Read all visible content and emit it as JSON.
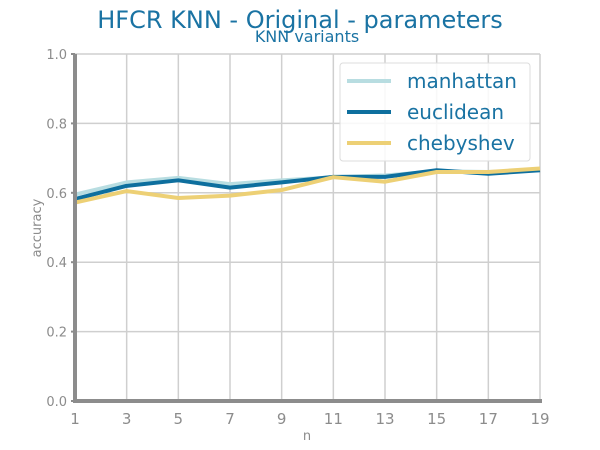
{
  "chart_data": {
    "type": "line",
    "title": "HFCR KNN - Original - parameters",
    "subtitle": "KNN variants",
    "xlabel": "n",
    "ylabel": "accuracy",
    "x": [
      1,
      3,
      5,
      7,
      9,
      11,
      13,
      15,
      17,
      19
    ],
    "xlim": [
      1,
      19
    ],
    "ylim": [
      0.0,
      1.0
    ],
    "xticks": [
      "1",
      "3",
      "5",
      "7",
      "9",
      "11",
      "13",
      "15",
      "17",
      "19"
    ],
    "yticks": [
      "0.0",
      "0.2",
      "0.4",
      "0.6",
      "0.8",
      "1.0"
    ],
    "grid": true,
    "legend_position": "top-right",
    "series": [
      {
        "name": "manhattan",
        "color": "#b8dde1",
        "values": [
          0.595,
          0.63,
          0.643,
          0.625,
          0.636,
          0.645,
          0.65,
          0.662,
          0.66,
          0.665
        ]
      },
      {
        "name": "euclidean",
        "color": "#0e6f9e",
        "values": [
          0.582,
          0.62,
          0.636,
          0.615,
          0.63,
          0.646,
          0.646,
          0.665,
          0.655,
          0.665
        ]
      },
      {
        "name": "chebyshev",
        "color": "#edd075",
        "values": [
          0.572,
          0.605,
          0.585,
          0.592,
          0.608,
          0.645,
          0.632,
          0.66,
          0.66,
          0.67
        ]
      }
    ]
  }
}
